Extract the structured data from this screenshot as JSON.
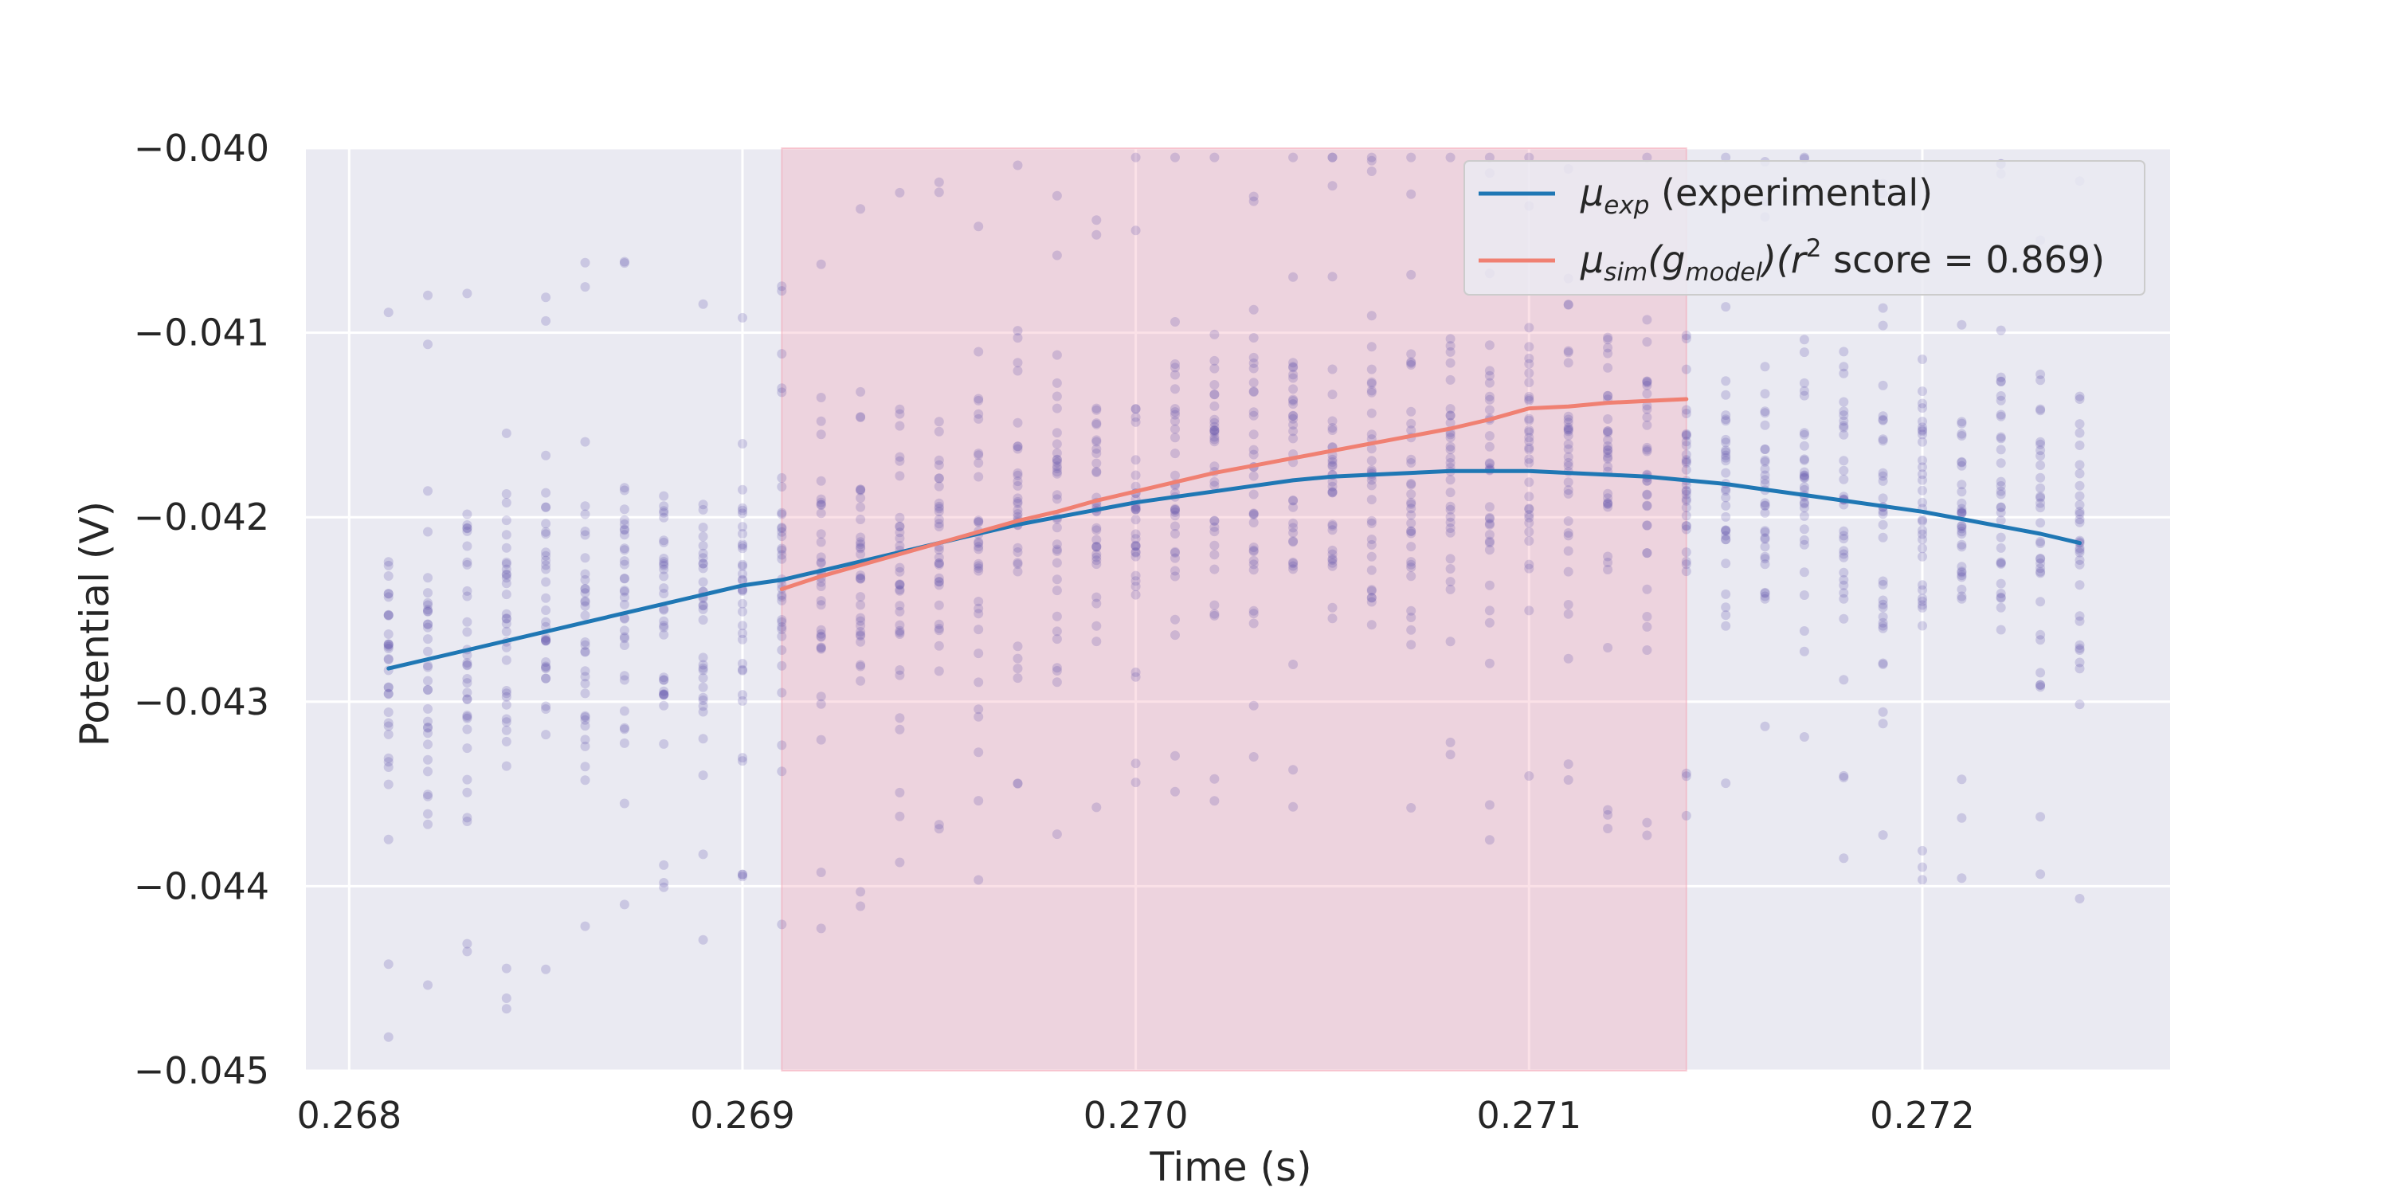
{
  "chart_data": {
    "type": "line",
    "xlabel": "Time (s)",
    "ylabel": "Potential (V)",
    "xlim": [
      0.26789,
      0.27263
    ],
    "ylim": [
      -0.045,
      -0.04
    ],
    "x_ticks": [
      0.268,
      0.269,
      0.27,
      0.271,
      0.272
    ],
    "x_tick_labels": [
      "0.268",
      "0.269",
      "0.270",
      "0.271",
      "0.272"
    ],
    "y_ticks": [
      -0.04,
      -0.041,
      -0.042,
      -0.043,
      -0.044,
      -0.045
    ],
    "y_tick_labels": [
      "−0.040",
      "−0.041",
      "−0.042",
      "−0.043",
      "−0.044",
      "−0.045"
    ],
    "grid": true,
    "legend_position": "top-right",
    "shaded_region": {
      "x_start": 0.2691,
      "x_end": 0.2714,
      "color": "#f4a3b3"
    },
    "scatter_x": {
      "start": 0.2681,
      "step": 0.0001,
      "count": 44
    },
    "series": [
      {
        "name": "μ_exp (experimental)",
        "legend": {
          "base": "μ",
          "sub": "exp",
          "rest": " (experimental)"
        },
        "color": "#1f77b4",
        "x": [
          0.2681,
          0.2682,
          0.2683,
          0.2684,
          0.2685,
          0.2686,
          0.2687,
          0.2688,
          0.2689,
          0.269,
          0.2691,
          0.2692,
          0.2693,
          0.2694,
          0.2695,
          0.2696,
          0.2697,
          0.2698,
          0.2699,
          0.27,
          0.2701,
          0.2702,
          0.2703,
          0.2704,
          0.2705,
          0.2706,
          0.2707,
          0.2708,
          0.2709,
          0.271,
          0.2711,
          0.2712,
          0.2713,
          0.2714,
          0.2715,
          0.2716,
          0.2717,
          0.2718,
          0.2719,
          0.272,
          0.2721,
          0.2722,
          0.2723,
          0.2724
        ],
        "y": [
          -0.04282,
          -0.04277,
          -0.04272,
          -0.04267,
          -0.04262,
          -0.04257,
          -0.04252,
          -0.04247,
          -0.04242,
          -0.04237,
          -0.04234,
          -0.04229,
          -0.04224,
          -0.04219,
          -0.04214,
          -0.04209,
          -0.04204,
          -0.042,
          -0.04196,
          -0.04192,
          -0.04189,
          -0.04186,
          -0.04183,
          -0.0418,
          -0.04178,
          -0.04177,
          -0.04176,
          -0.04175,
          -0.04175,
          -0.04175,
          -0.04176,
          -0.04177,
          -0.04178,
          -0.0418,
          -0.04182,
          -0.04185,
          -0.04188,
          -0.04191,
          -0.04194,
          -0.04197,
          -0.04201,
          -0.04205,
          -0.04209,
          -0.04214
        ]
      },
      {
        "name": "μ_sim(g_model)(r² score = 0.869)",
        "legend": {
          "base": "μ",
          "sub": "sim",
          "paren_open": "(g",
          "sub2": "model",
          "paren_close": ")(r",
          "sup": "2",
          "rest": " score =  0.869)"
        },
        "color": "#f08072",
        "x": [
          0.2691,
          0.2692,
          0.2693,
          0.2694,
          0.2695,
          0.2696,
          0.2697,
          0.2698,
          0.2699,
          0.27,
          0.2701,
          0.2702,
          0.2703,
          0.2704,
          0.2705,
          0.2706,
          0.2707,
          0.2708,
          0.2709,
          0.271,
          0.2711,
          0.2712,
          0.2713,
          0.2714
        ],
        "y": [
          -0.04239,
          -0.04232,
          -0.04226,
          -0.0422,
          -0.04214,
          -0.04208,
          -0.04202,
          -0.04197,
          -0.04191,
          -0.04186,
          -0.04181,
          -0.04176,
          -0.04172,
          -0.04168,
          -0.04164,
          -0.0416,
          -0.04156,
          -0.04152,
          -0.04147,
          -0.04141,
          -0.0414,
          -0.04138,
          -0.04137,
          -0.04136
        ]
      }
    ],
    "scatter_color": "#5a4ea8"
  }
}
